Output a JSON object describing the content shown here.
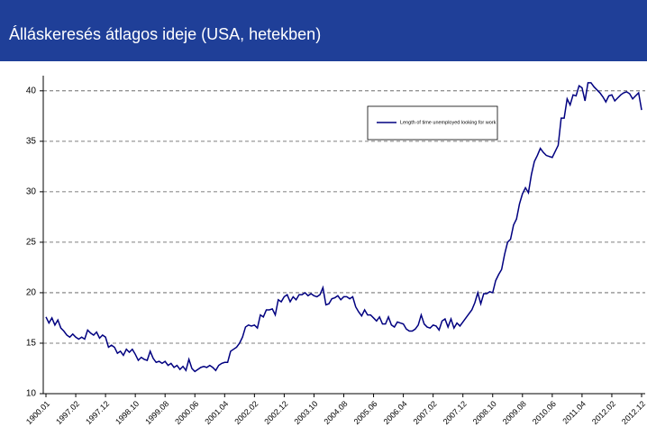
{
  "chart_data": {
    "type": "line",
    "title": "Álláskeresés átlagos ideje (USA, hetekben)",
    "categories": [
      "1900.01",
      null,
      null,
      null,
      null,
      null,
      null,
      null,
      null,
      null,
      "1997.02",
      null,
      null,
      null,
      null,
      null,
      null,
      null,
      null,
      null,
      "1997.12",
      null,
      null,
      null,
      null,
      null,
      null,
      null,
      null,
      null,
      "1998.10",
      null,
      null,
      null,
      null,
      null,
      null,
      null,
      null,
      null,
      "1999.08",
      null,
      null,
      null,
      null,
      null,
      null,
      null,
      null,
      null,
      "2000.06",
      null,
      null,
      null,
      null,
      null,
      null,
      null,
      null,
      null,
      "2001.04",
      null,
      null,
      null,
      null,
      null,
      null,
      null,
      null,
      null,
      "2002.02",
      null,
      null,
      null,
      null,
      null,
      null,
      null,
      null,
      null,
      "2002.12",
      null,
      null,
      null,
      null,
      null,
      null,
      null,
      null,
      null,
      "2003.10",
      null,
      null,
      null,
      null,
      null,
      null,
      null,
      null,
      null,
      "2004.08",
      null,
      null,
      null,
      null,
      null,
      null,
      null,
      null,
      null,
      "2005.06",
      null,
      null,
      null,
      null,
      null,
      null,
      null,
      null,
      null,
      "2006.04",
      null,
      null,
      null,
      null,
      null,
      null,
      null,
      null,
      null,
      "2007.02",
      null,
      null,
      null,
      null,
      null,
      null,
      null,
      null,
      null,
      "2007.12",
      null,
      null,
      null,
      null,
      null,
      null,
      null,
      null,
      null,
      "2008.10",
      null,
      null,
      null,
      null,
      null,
      null,
      null,
      null,
      null,
      "2009.08",
      null,
      null,
      null,
      null,
      null,
      null,
      null,
      null,
      null,
      "2010.06",
      null,
      null,
      null,
      null,
      null,
      null,
      null,
      null,
      null,
      "2011.04",
      null,
      null,
      null,
      null,
      null,
      null,
      null,
      null,
      null,
      "2012.02",
      null,
      null,
      null,
      null,
      null,
      null,
      null,
      null,
      null,
      "2012.12"
    ],
    "series": [
      {
        "name": "Length of time unemployed  looking for work",
        "color": "#000080",
        "values": [
          17.6,
          17.0,
          17.5,
          16.8,
          17.3,
          16.5,
          16.2,
          15.8,
          15.6,
          15.9,
          15.6,
          15.4,
          15.6,
          15.4,
          16.3,
          16.0,
          15.8,
          16.1,
          15.5,
          15.8,
          15.6,
          14.6,
          14.8,
          14.6,
          14.0,
          14.2,
          13.8,
          14.4,
          14.1,
          14.4,
          13.9,
          13.3,
          13.6,
          13.4,
          13.3,
          14.2,
          13.5,
          13.1,
          13.2,
          13.0,
          13.2,
          12.8,
          13.0,
          12.6,
          12.8,
          12.4,
          12.7,
          12.3,
          13.4,
          12.5,
          12.2,
          12.4,
          12.6,
          12.7,
          12.6,
          12.8,
          12.6,
          12.3,
          12.8,
          13.0,
          13.1,
          13.1,
          14.2,
          14.4,
          14.6,
          15.0,
          15.6,
          16.6,
          16.8,
          16.7,
          16.8,
          16.5,
          17.8,
          17.6,
          18.3,
          18.3,
          18.4,
          17.8,
          19.3,
          19.1,
          19.6,
          19.8,
          19.1,
          19.6,
          19.3,
          19.8,
          19.8,
          20.0,
          19.7,
          19.9,
          19.7,
          19.6,
          19.8,
          20.5,
          18.8,
          18.9,
          19.4,
          19.5,
          19.7,
          19.3,
          19.6,
          19.6,
          19.4,
          19.6,
          18.6,
          18.1,
          17.7,
          18.3,
          17.8,
          17.8,
          17.5,
          17.2,
          17.6,
          16.9,
          16.9,
          17.6,
          16.8,
          16.6,
          17.1,
          17.0,
          16.9,
          16.4,
          16.2,
          16.2,
          16.4,
          16.8,
          17.8,
          16.9,
          16.6,
          16.5,
          16.8,
          16.7,
          16.3,
          17.2,
          17.4,
          16.6,
          17.4,
          16.5,
          17.0,
          16.7,
          17.1,
          17.5,
          17.9,
          18.3,
          19.0,
          20.0,
          18.9,
          19.9,
          19.9,
          20.1,
          20.0,
          21.2,
          21.8,
          22.3,
          23.8,
          25.0,
          25.3,
          26.7,
          27.3,
          28.8,
          29.8,
          30.4,
          29.9,
          31.7,
          33.0,
          33.6,
          34.3,
          33.9,
          33.6,
          33.5,
          33.4,
          34.0,
          34.6,
          37.3,
          37.3,
          39.2,
          38.6,
          39.6,
          39.5,
          40.5,
          40.3,
          39.0,
          40.8,
          40.8,
          40.4,
          40.1,
          39.8,
          39.4,
          38.9,
          39.5,
          39.6,
          39.0,
          39.3,
          39.6,
          39.8,
          39.9,
          39.7,
          39.2,
          39.5,
          39.8,
          38.1
        ]
      }
    ],
    "ylim": [
      10,
      41.5
    ],
    "yticks": [
      10,
      15,
      20,
      25,
      30,
      35,
      40
    ],
    "grid": true
  }
}
